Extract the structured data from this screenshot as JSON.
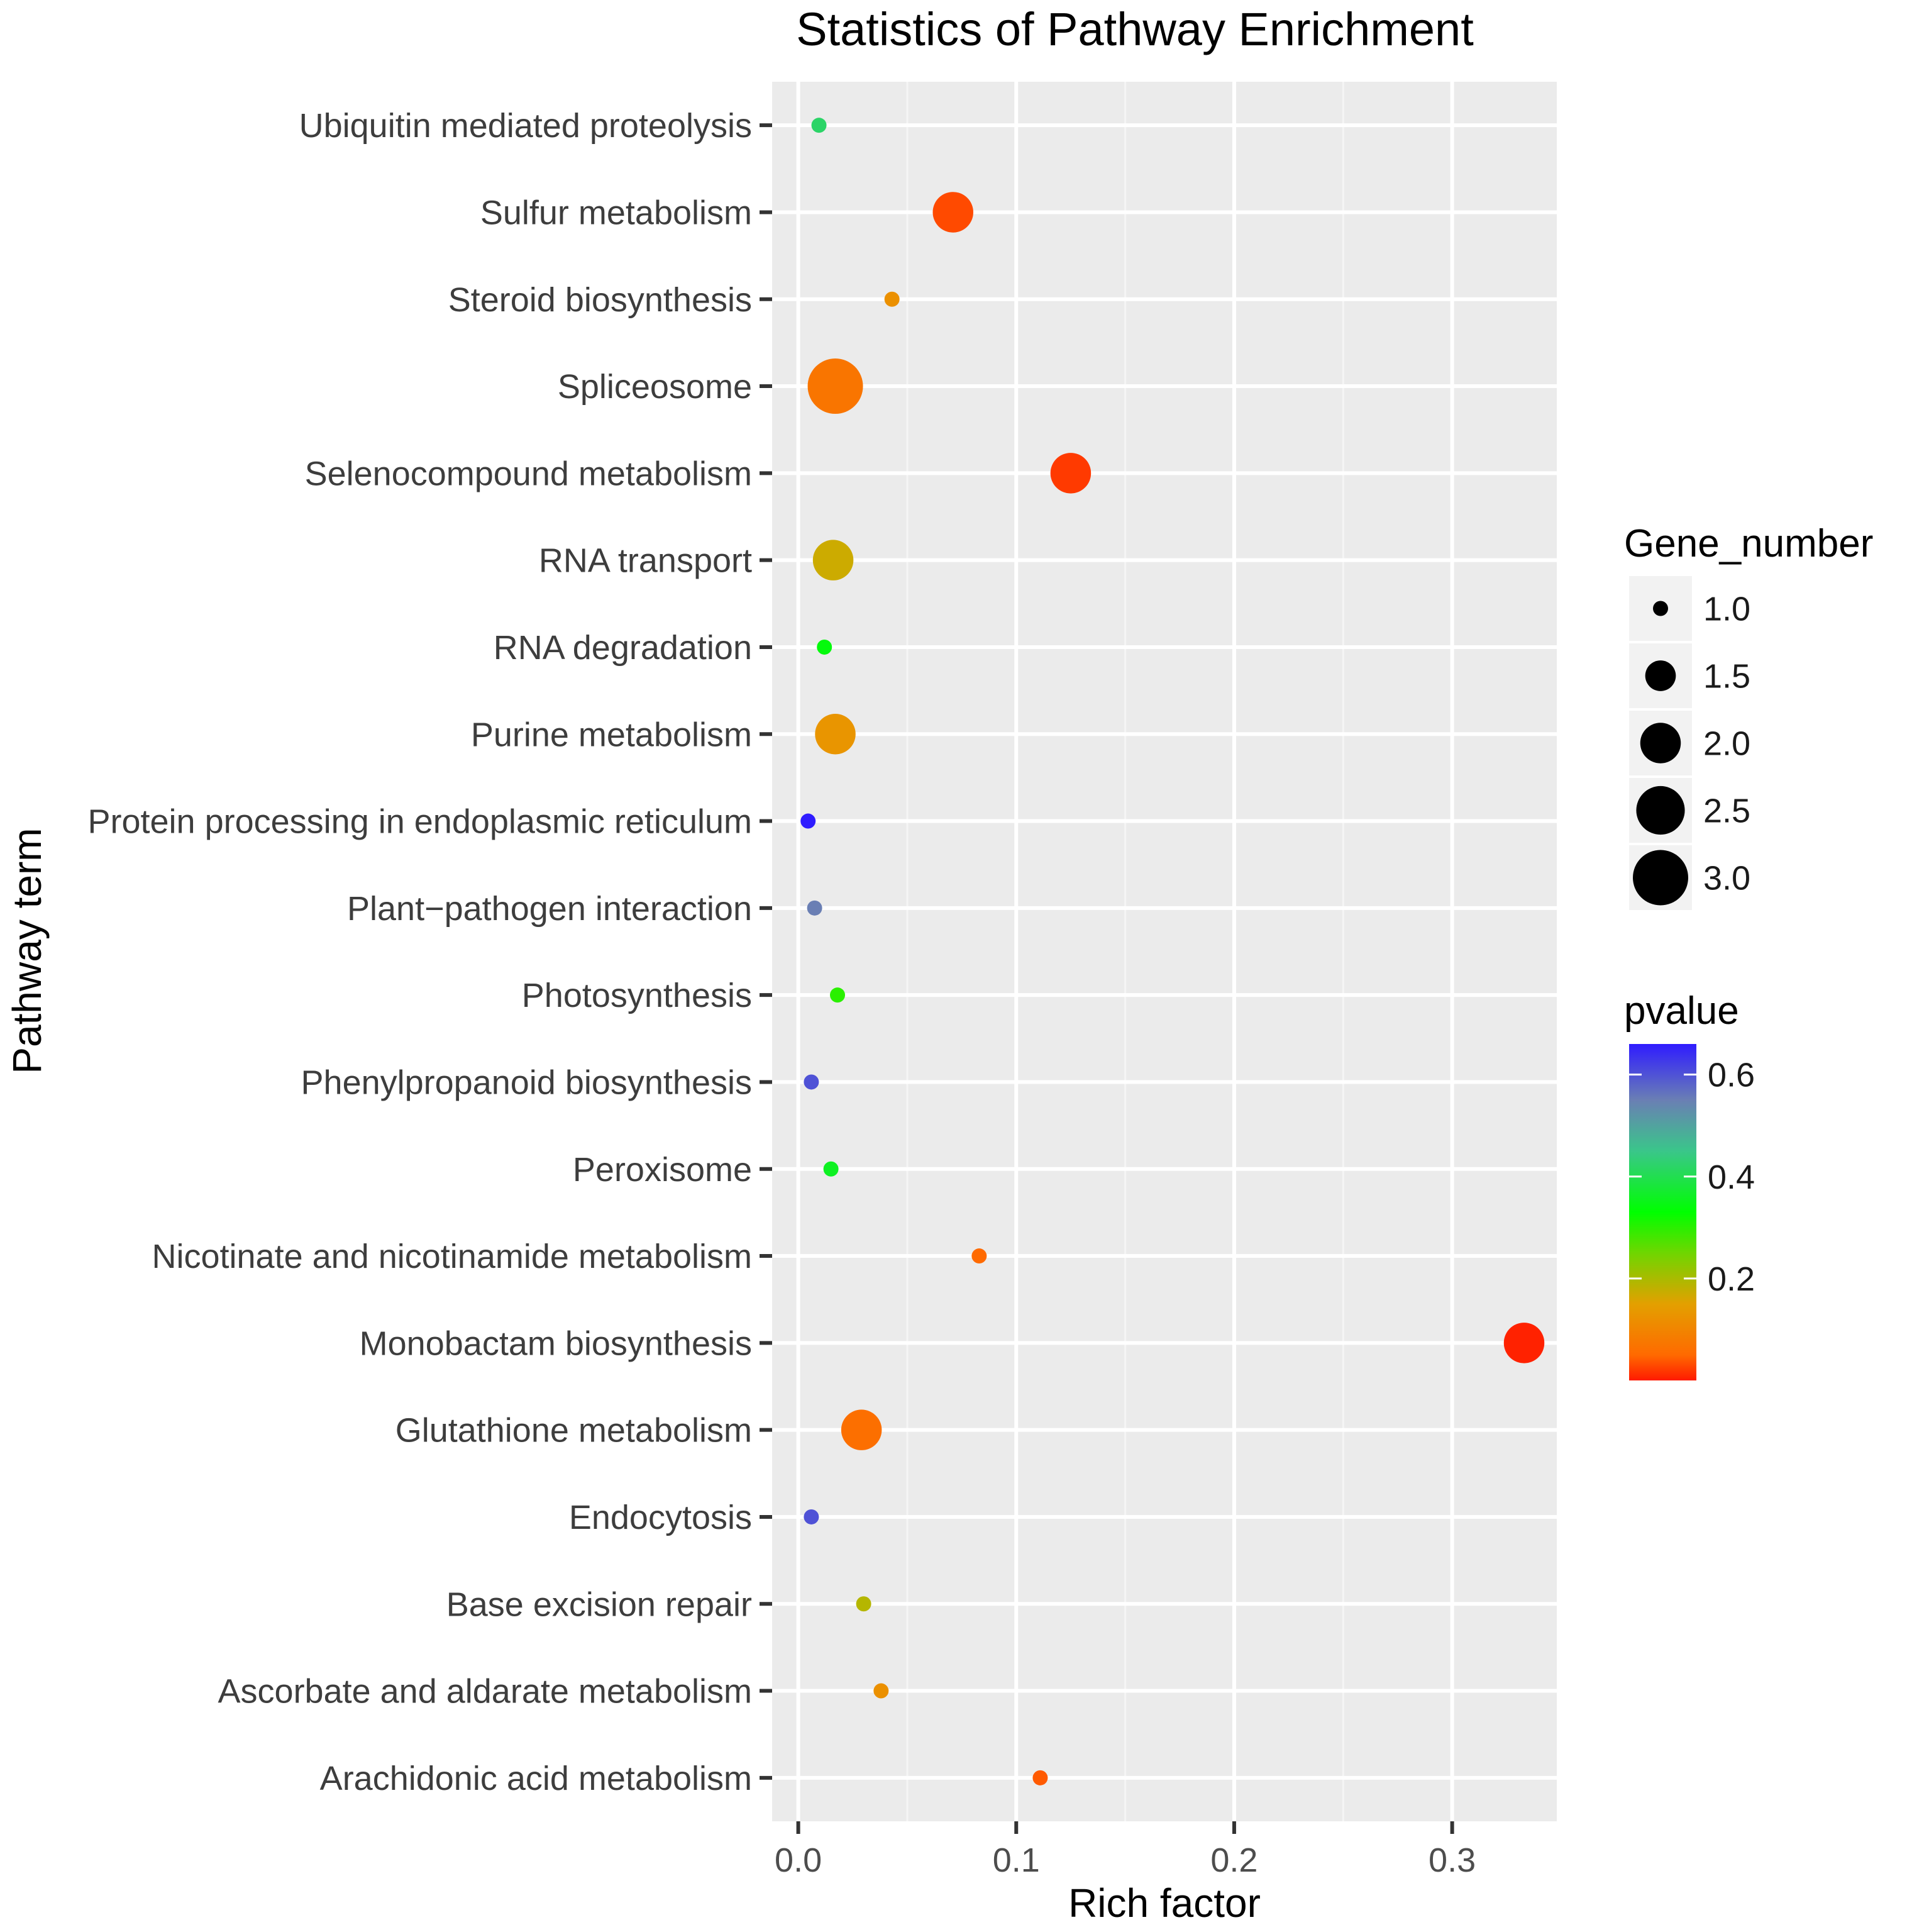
{
  "chart_data": {
    "type": "scatter",
    "title": "Statistics of Pathway Enrichment",
    "xlabel": "Rich factor",
    "ylabel": "Pathway term",
    "xlim": [
      -0.012,
      0.348
    ],
    "x_ticks": [
      0.0,
      0.1,
      0.2,
      0.3
    ],
    "x_tick_labels": [
      "0.0",
      "0.1",
      "0.2",
      "0.3"
    ],
    "grid": true,
    "categories": [
      "Ubiquitin mediated proteolysis",
      "Sulfur metabolism",
      "Steroid biosynthesis",
      "Spliceosome",
      "Selenocompound metabolism",
      "RNA transport",
      "RNA degradation",
      "Purine metabolism",
      "Protein processing in endoplasmic reticulum",
      "Plant−pathogen interaction",
      "Photosynthesis",
      "Phenylpropanoid biosynthesis",
      "Peroxisome",
      "Nicotinate and nicotinamide metabolism",
      "Monobactam biosynthesis",
      "Glutathione metabolism",
      "Endocytosis",
      "Base excision repair",
      "Ascorbate and aldarate metabolism",
      "Arachidonic acid metabolism"
    ],
    "points": [
      {
        "term": "Ubiquitin mediated proteolysis",
        "rich_factor": 0.0095,
        "gene_number": 1,
        "pvalue": 0.42
      },
      {
        "term": "Sulfur metabolism",
        "rich_factor": 0.071,
        "gene_number": 2,
        "pvalue": 0.03
      },
      {
        "term": "Steroid biosynthesis",
        "rich_factor": 0.043,
        "gene_number": 1,
        "pvalue": 0.12
      },
      {
        "term": "Spliceosome",
        "rich_factor": 0.017,
        "gene_number": 3,
        "pvalue": 0.07
      },
      {
        "term": "Selenocompound metabolism",
        "rich_factor": 0.125,
        "gene_number": 2,
        "pvalue": 0.02
      },
      {
        "term": "RNA transport",
        "rich_factor": 0.016,
        "gene_number": 2,
        "pvalue": 0.17
      },
      {
        "term": "RNA degradation",
        "rich_factor": 0.012,
        "gene_number": 1,
        "pvalue": 0.34
      },
      {
        "term": "Purine metabolism",
        "rich_factor": 0.017,
        "gene_number": 2,
        "pvalue": 0.13
      },
      {
        "term": "Protein processing in endoplasmic reticulum",
        "rich_factor": 0.0045,
        "gene_number": 1,
        "pvalue": 0.66
      },
      {
        "term": "Plant−pathogen interaction",
        "rich_factor": 0.0075,
        "gene_number": 1,
        "pvalue": 0.55
      },
      {
        "term": "Photosynthesis",
        "rich_factor": 0.018,
        "gene_number": 1,
        "pvalue": 0.3
      },
      {
        "term": "Phenylpropanoid biosynthesis",
        "rich_factor": 0.006,
        "gene_number": 1,
        "pvalue": 0.6
      },
      {
        "term": "Peroxisome",
        "rich_factor": 0.015,
        "gene_number": 1,
        "pvalue": 0.36
      },
      {
        "term": "Nicotinate and nicotinamide metabolism",
        "rich_factor": 0.083,
        "gene_number": 1,
        "pvalue": 0.05
      },
      {
        "term": "Monobactam biosynthesis",
        "rich_factor": 0.333,
        "gene_number": 2,
        "pvalue": 0.005
      },
      {
        "term": "Glutathione metabolism",
        "rich_factor": 0.029,
        "gene_number": 2,
        "pvalue": 0.06
      },
      {
        "term": "Endocytosis",
        "rich_factor": 0.006,
        "gene_number": 1,
        "pvalue": 0.6
      },
      {
        "term": "Base excision repair",
        "rich_factor": 0.03,
        "gene_number": 1,
        "pvalue": 0.19
      },
      {
        "term": "Ascorbate and aldarate metabolism",
        "rich_factor": 0.038,
        "gene_number": 1,
        "pvalue": 0.12
      },
      {
        "term": "Arachidonic acid metabolism",
        "rich_factor": 0.111,
        "gene_number": 1,
        "pvalue": 0.04
      }
    ],
    "size_legend": {
      "title": "Gene_number",
      "breaks": [
        1.0,
        1.5,
        2.0,
        2.5,
        3.0
      ],
      "labels": [
        "1.0",
        "1.5",
        "2.0",
        "2.5",
        "3.0"
      ]
    },
    "color_legend": {
      "title": "pvalue",
      "range": [
        0.0,
        0.66
      ],
      "breaks": [
        0.6,
        0.4,
        0.2
      ],
      "labels": [
        "0.6",
        "0.4",
        "0.2"
      ],
      "gradient_stops": [
        {
          "value": 0.0,
          "color": "#ff1a00"
        },
        {
          "value": 0.05,
          "color": "#ff6a00"
        },
        {
          "value": 0.15,
          "color": "#e3a000"
        },
        {
          "value": 0.25,
          "color": "#6fd600"
        },
        {
          "value": 0.33,
          "color": "#00ff00"
        },
        {
          "value": 0.45,
          "color": "#3ac68a"
        },
        {
          "value": 0.55,
          "color": "#6a7fb4"
        },
        {
          "value": 0.66,
          "color": "#2f1cff"
        }
      ]
    },
    "colors": {
      "panel_background": "#ebebeb",
      "grid_major": "#ffffff",
      "grid_minor": "#f5f5f5",
      "tick_mark": "#333333",
      "legend_key_background": "#f2f2f2",
      "size_legend_dot": "#000000"
    }
  }
}
